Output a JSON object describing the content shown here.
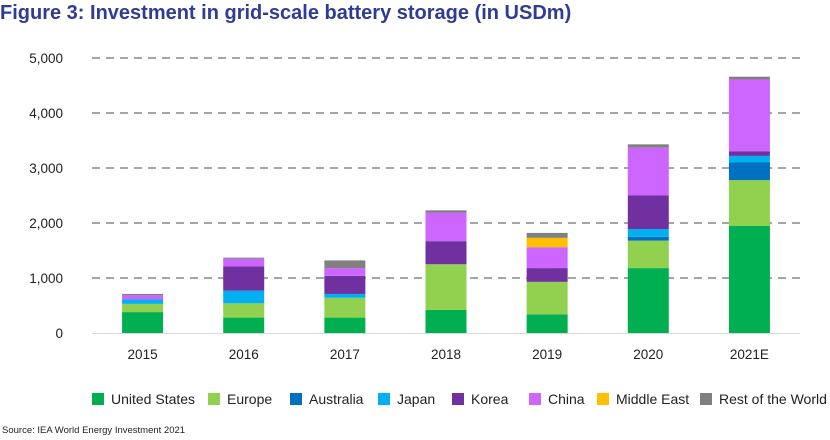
{
  "figure": {
    "title": "Figure 3: Investment in grid-scale battery storage (in USDm)",
    "source": "Source: IEA World Energy Investment 2021"
  },
  "chart_data": {
    "type": "bar",
    "stacked": true,
    "title": "Figure 3: Investment in grid-scale battery storage (in USDm)",
    "xlabel": "",
    "ylabel": "",
    "ylim": [
      0,
      5000
    ],
    "yticks": [
      0,
      1000,
      2000,
      3000,
      4000,
      5000
    ],
    "ytick_labels": [
      "0",
      "1,000",
      "2,000",
      "3,000",
      "4,000",
      "5,000"
    ],
    "grid": "horizontal-dashed",
    "legend_position": "bottom",
    "categories": [
      "2015",
      "2016",
      "2017",
      "2018",
      "2019",
      "2020",
      "2021E"
    ],
    "series": [
      {
        "name": "United States",
        "color": "#00b050",
        "values": [
          380,
          280,
          280,
          420,
          340,
          1180,
          1950
        ]
      },
      {
        "name": "Europe",
        "color": "#92d050",
        "values": [
          150,
          260,
          360,
          830,
          590,
          500,
          830
        ]
      },
      {
        "name": "Australia",
        "color": "#0070c0",
        "values": [
          0,
          0,
          0,
          0,
          0,
          70,
          320
        ]
      },
      {
        "name": "Japan",
        "color": "#00b0f0",
        "values": [
          80,
          230,
          70,
          0,
          0,
          140,
          120
        ]
      },
      {
        "name": "Korea",
        "color": "#7030a0",
        "values": [
          0,
          440,
          330,
          420,
          250,
          610,
          80
        ]
      },
      {
        "name": "China",
        "color": "#cc66ff",
        "values": [
          80,
          140,
          140,
          520,
          380,
          870,
          1310
        ]
      },
      {
        "name": "Middle East",
        "color": "#ffc000",
        "values": [
          0,
          0,
          0,
          0,
          170,
          0,
          0
        ]
      },
      {
        "name": "Rest of the World",
        "color": "#808080",
        "values": [
          20,
          20,
          140,
          40,
          90,
          60,
          50
        ]
      }
    ]
  }
}
